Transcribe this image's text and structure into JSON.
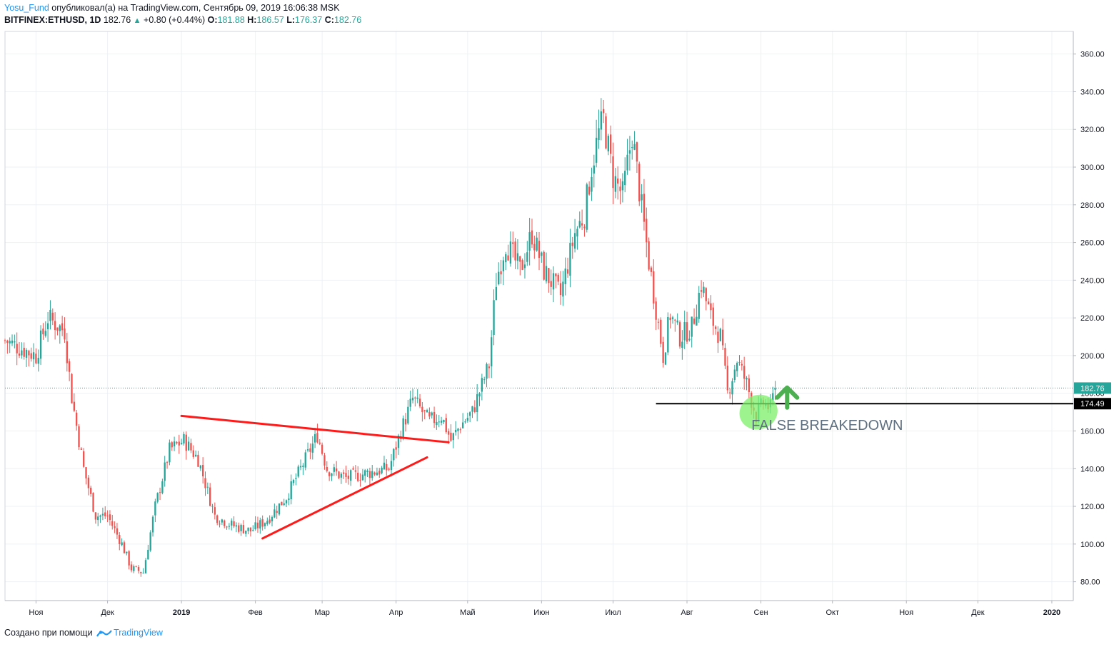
{
  "header": {
    "author": "Yosu_Fund",
    "published_text": "опубликовал(а) на TradingView.com, Сентябрь 09, 2019 16:06:38 MSK",
    "symbol": "BITFINEX:ETHUSD, 1D",
    "last": "182.76",
    "change_arrow": "▲",
    "change": "+0.80 (+0.44%)",
    "o_label": "O:",
    "o_value": "181.88",
    "h_label": "H:",
    "h_value": "186.57",
    "l_label": "L:",
    "l_value": "176.37",
    "c_label": "C:",
    "c_value": "182.76"
  },
  "footer": {
    "created_with": "Создано при помощи",
    "brand": "TradingView"
  },
  "colors": {
    "up": "#26a69a",
    "down": "#ef5350",
    "trendline": "#ff1a1a",
    "support": "#000000",
    "highlight": "#7cf06a",
    "arrow": "#4caf50",
    "annotation": "#5d6f80",
    "grid": "#eef1f4",
    "last_price_badge": "#26a69a"
  },
  "chart_data": {
    "type": "candlestick",
    "symbol": "BITFINEX:ETHUSD",
    "timeframe": "1D",
    "ylim": [
      70,
      372
    ],
    "y_ticks": [
      "80.00",
      "100.00",
      "120.00",
      "140.00",
      "160.00",
      "180.00",
      "200.00",
      "220.00",
      "240.00",
      "260.00",
      "280.00",
      "300.00",
      "320.00",
      "340.00",
      "360.00"
    ],
    "x_ticks": [
      "Ноя",
      "Дек",
      "2019",
      "Фев",
      "Мар",
      "Апр",
      "Май",
      "Июн",
      "Июл",
      "Авг",
      "Сен",
      "Окт",
      "Ноя",
      "Дек",
      "2020"
    ],
    "x_tick_days": [
      0,
      30,
      61,
      92,
      120,
      151,
      181,
      212,
      242,
      273,
      304,
      334,
      365,
      395,
      426
    ],
    "x_range_days": [
      -13,
      435
    ],
    "last_price": 182.76,
    "last_price_label": "182.76",
    "support_level": 174.49,
    "support_label": "174.49",
    "support_line_days": [
      260,
      435
    ],
    "annotation": "FALSE BREAKEDOWN",
    "annotation_anchor": [
      300,
      162
    ],
    "highlight_center": [
      303,
      170
    ],
    "arrow_anchor": [
      315,
      183
    ],
    "trendlines": [
      {
        "name": "upper-descending",
        "from": [
          61,
          168
        ],
        "to": [
          173,
          154
        ]
      },
      {
        "name": "lower-ascending",
        "from": [
          95,
          103
        ],
        "to": [
          164,
          146
        ]
      }
    ],
    "key_points": [
      {
        "day": -13,
        "close": 208
      },
      {
        "day": 0,
        "close": 200
      },
      {
        "day": 5,
        "close": 220
      },
      {
        "day": 12,
        "close": 213
      },
      {
        "day": 15,
        "close": 178
      },
      {
        "day": 20,
        "close": 140
      },
      {
        "day": 25,
        "close": 115
      },
      {
        "day": 30,
        "close": 115
      },
      {
        "day": 36,
        "close": 100
      },
      {
        "day": 40,
        "close": 87
      },
      {
        "day": 45,
        "close": 85
      },
      {
        "day": 50,
        "close": 120
      },
      {
        "day": 56,
        "close": 150
      },
      {
        "day": 62,
        "close": 155
      },
      {
        "day": 68,
        "close": 145
      },
      {
        "day": 75,
        "close": 115
      },
      {
        "day": 82,
        "close": 110
      },
      {
        "day": 90,
        "close": 107
      },
      {
        "day": 97,
        "close": 113
      },
      {
        "day": 105,
        "close": 125
      },
      {
        "day": 113,
        "close": 145
      },
      {
        "day": 118,
        "close": 158
      },
      {
        "day": 122,
        "close": 140
      },
      {
        "day": 130,
        "close": 135
      },
      {
        "day": 140,
        "close": 138
      },
      {
        "day": 148,
        "close": 140
      },
      {
        "day": 153,
        "close": 160
      },
      {
        "day": 158,
        "close": 177
      },
      {
        "day": 165,
        "close": 165
      },
      {
        "day": 170,
        "close": 168
      },
      {
        "day": 174,
        "close": 155
      },
      {
        "day": 178,
        "close": 163
      },
      {
        "day": 183,
        "close": 170
      },
      {
        "day": 190,
        "close": 195
      },
      {
        "day": 193,
        "close": 240
      },
      {
        "day": 197,
        "close": 260
      },
      {
        "day": 203,
        "close": 245
      },
      {
        "day": 208,
        "close": 265
      },
      {
        "day": 213,
        "close": 245
      },
      {
        "day": 220,
        "close": 232
      },
      {
        "day": 226,
        "close": 265
      },
      {
        "day": 230,
        "close": 275
      },
      {
        "day": 233,
        "close": 300
      },
      {
        "day": 236,
        "close": 318
      },
      {
        "day": 238,
        "close": 325
      },
      {
        "day": 242,
        "close": 295
      },
      {
        "day": 246,
        "close": 285
      },
      {
        "day": 250,
        "close": 318
      },
      {
        "day": 254,
        "close": 278
      },
      {
        "day": 257,
        "close": 250
      },
      {
        "day": 260,
        "close": 225
      },
      {
        "day": 263,
        "close": 200
      },
      {
        "day": 266,
        "close": 222
      },
      {
        "day": 270,
        "close": 210
      },
      {
        "day": 275,
        "close": 215
      },
      {
        "day": 279,
        "close": 238
      },
      {
        "day": 283,
        "close": 220
      },
      {
        "day": 287,
        "close": 210
      },
      {
        "day": 290,
        "close": 180
      },
      {
        "day": 294,
        "close": 198
      },
      {
        "day": 298,
        "close": 185
      },
      {
        "day": 302,
        "close": 168
      },
      {
        "day": 305,
        "close": 175
      },
      {
        "day": 308,
        "close": 172
      },
      {
        "day": 310,
        "close": 182.76
      }
    ]
  }
}
